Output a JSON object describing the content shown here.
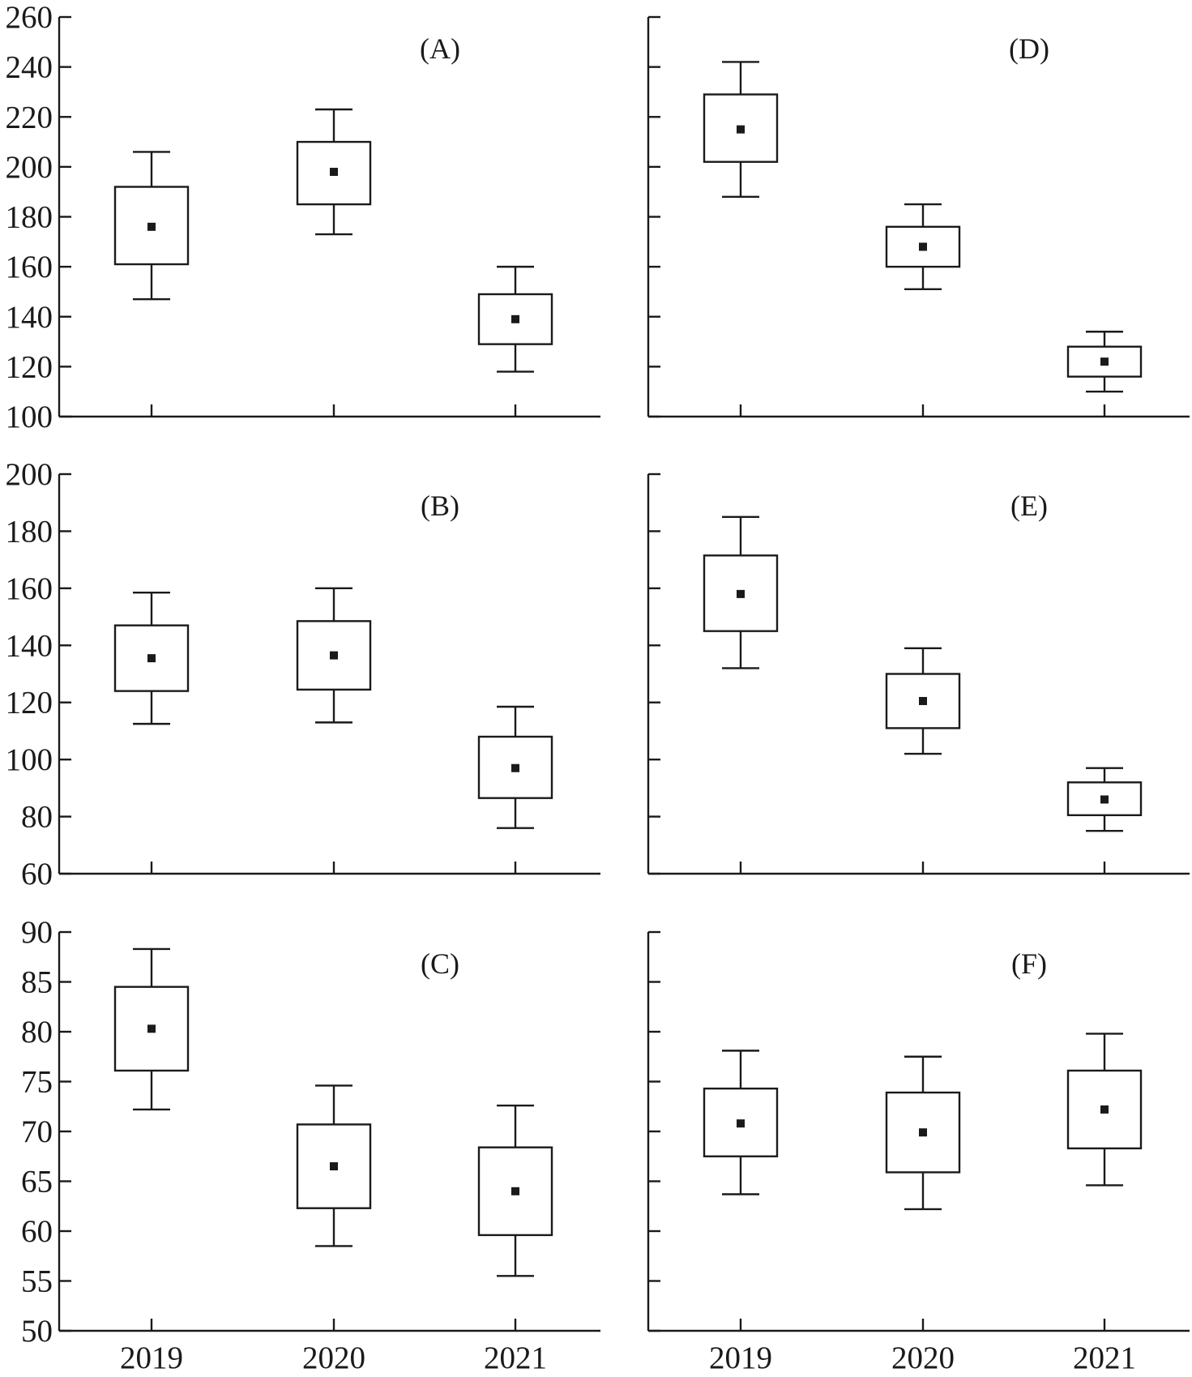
{
  "chart_data": [
    {
      "type": "box",
      "panel_label": "(A)",
      "categories": [
        "2019",
        "2020",
        "2021"
      ],
      "yticks": [
        100,
        120,
        140,
        160,
        180,
        200,
        220,
        240,
        260
      ],
      "ylim": [
        100,
        260
      ],
      "show_y_tick_labels": true,
      "show_x_tick_labels": false,
      "boxes": [
        {
          "category": "2019",
          "whisker_low": 147,
          "q1": 161,
          "mean": 176,
          "q3": 192,
          "whisker_high": 206
        },
        {
          "category": "2020",
          "whisker_low": 173,
          "q1": 185,
          "mean": 198,
          "q3": 210,
          "whisker_high": 223
        },
        {
          "category": "2021",
          "whisker_low": 118,
          "q1": 129,
          "mean": 139,
          "q3": 149,
          "whisker_high": 160
        }
      ]
    },
    {
      "type": "box",
      "panel_label": "(D)",
      "categories": [
        "2019",
        "2020",
        "2021"
      ],
      "yticks": [
        100,
        120,
        140,
        160,
        180,
        200,
        220,
        240,
        260
      ],
      "ylim": [
        100,
        260
      ],
      "show_y_tick_labels": false,
      "show_x_tick_labels": false,
      "boxes": [
        {
          "category": "2019",
          "whisker_low": 188,
          "q1": 202,
          "mean": 215,
          "q3": 229,
          "whisker_high": 242
        },
        {
          "category": "2020",
          "whisker_low": 151,
          "q1": 160,
          "mean": 168,
          "q3": 176,
          "whisker_high": 185
        },
        {
          "category": "2021",
          "whisker_low": 110,
          "q1": 116,
          "mean": 122,
          "q3": 128,
          "whisker_high": 134
        }
      ]
    },
    {
      "type": "box",
      "panel_label": "(B)",
      "categories": [
        "2019",
        "2020",
        "2021"
      ],
      "yticks": [
        60,
        80,
        100,
        120,
        140,
        160,
        180,
        200
      ],
      "ylim": [
        60,
        200
      ],
      "show_y_tick_labels": true,
      "show_x_tick_labels": false,
      "boxes": [
        {
          "category": "2019",
          "whisker_low": 112.5,
          "q1": 124,
          "mean": 135.5,
          "q3": 147,
          "whisker_high": 158.5
        },
        {
          "category": "2020",
          "whisker_low": 113,
          "q1": 124.5,
          "mean": 136.5,
          "q3": 148.5,
          "whisker_high": 160
        },
        {
          "category": "2021",
          "whisker_low": 76,
          "q1": 86.5,
          "mean": 97,
          "q3": 108,
          "whisker_high": 118.5
        }
      ]
    },
    {
      "type": "box",
      "panel_label": "(E)",
      "categories": [
        "2019",
        "2020",
        "2021"
      ],
      "yticks": [
        60,
        80,
        100,
        120,
        140,
        160,
        180,
        200
      ],
      "ylim": [
        60,
        200
      ],
      "show_y_tick_labels": false,
      "show_x_tick_labels": false,
      "boxes": [
        {
          "category": "2019",
          "whisker_low": 132,
          "q1": 145,
          "mean": 158,
          "q3": 171.5,
          "whisker_high": 185
        },
        {
          "category": "2020",
          "whisker_low": 102,
          "q1": 111,
          "mean": 120.5,
          "q3": 130,
          "whisker_high": 139
        },
        {
          "category": "2021",
          "whisker_low": 75,
          "q1": 80.5,
          "mean": 86,
          "q3": 92,
          "whisker_high": 97
        }
      ]
    },
    {
      "type": "box",
      "panel_label": "(C)",
      "categories": [
        "2019",
        "2020",
        "2021"
      ],
      "yticks": [
        50,
        55,
        60,
        65,
        70,
        75,
        80,
        85,
        90
      ],
      "ylim": [
        50,
        90
      ],
      "show_y_tick_labels": true,
      "show_x_tick_labels": true,
      "boxes": [
        {
          "category": "2019",
          "whisker_low": 72.2,
          "q1": 76.1,
          "mean": 80.3,
          "q3": 84.5,
          "whisker_high": 88.3
        },
        {
          "category": "2020",
          "whisker_low": 58.5,
          "q1": 62.3,
          "mean": 66.5,
          "q3": 70.7,
          "whisker_high": 74.6
        },
        {
          "category": "2021",
          "whisker_low": 55.5,
          "q1": 59.6,
          "mean": 64,
          "q3": 68.4,
          "whisker_high": 72.6
        }
      ]
    },
    {
      "type": "box",
      "panel_label": "(F)",
      "categories": [
        "2019",
        "2020",
        "2021"
      ],
      "yticks": [
        50,
        55,
        60,
        65,
        70,
        75,
        80,
        85,
        90
      ],
      "ylim": [
        50,
        90
      ],
      "show_y_tick_labels": false,
      "show_x_tick_labels": true,
      "boxes": [
        {
          "category": "2019",
          "whisker_low": 63.7,
          "q1": 67.5,
          "mean": 70.8,
          "q3": 74.3,
          "whisker_high": 78.1
        },
        {
          "category": "2020",
          "whisker_low": 62.2,
          "q1": 65.9,
          "mean": 69.9,
          "q3": 73.9,
          "whisker_high": 77.5
        },
        {
          "category": "2021",
          "whisker_low": 64.6,
          "q1": 68.3,
          "mean": 72.2,
          "q3": 76.1,
          "whisker_high": 79.8
        }
      ]
    }
  ]
}
